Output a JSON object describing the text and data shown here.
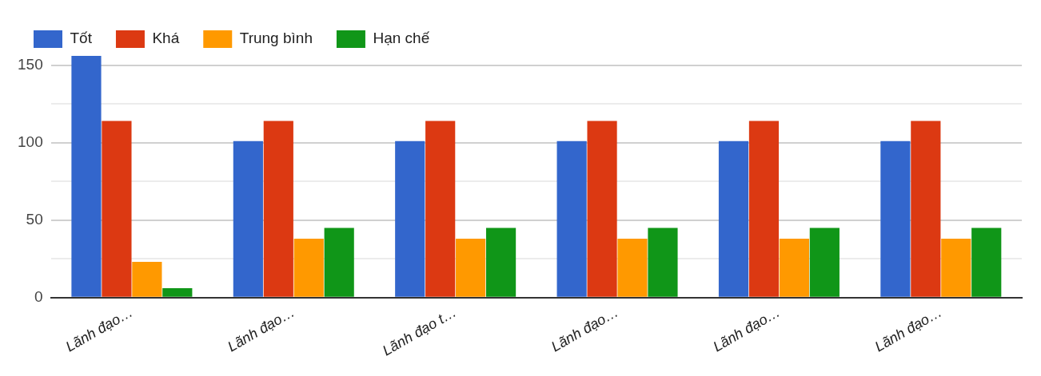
{
  "chart_data": {
    "type": "bar",
    "categories": [
      "Lãnh đạo…",
      "Lãnh đạo…",
      "Lãnh đạo t…",
      "Lãnh đạo…",
      "Lãnh đạo…",
      "Lãnh đạo…"
    ],
    "series": [
      {
        "name": "Tốt",
        "color": "#3366cc",
        "values": [
          156,
          101,
          101,
          101,
          101,
          101
        ]
      },
      {
        "name": "Khá",
        "color": "#dc3912",
        "values": [
          114,
          114,
          114,
          114,
          114,
          114
        ]
      },
      {
        "name": "Trung bình",
        "color": "#ff9900",
        "values": [
          23,
          38,
          38,
          38,
          38,
          38
        ]
      },
      {
        "name": "Hạn chế",
        "color": "#109618",
        "values": [
          6,
          45,
          45,
          45,
          45,
          45
        ]
      }
    ],
    "ylim": [
      0,
      156
    ],
    "yticks": [
      0,
      {
        "value": 25,
        "label": null
      },
      50,
      {
        "value": 75,
        "label": null
      },
      100,
      {
        "value": 125,
        "label": null
      },
      150
    ],
    "grid": "y",
    "legend": "top left"
  }
}
